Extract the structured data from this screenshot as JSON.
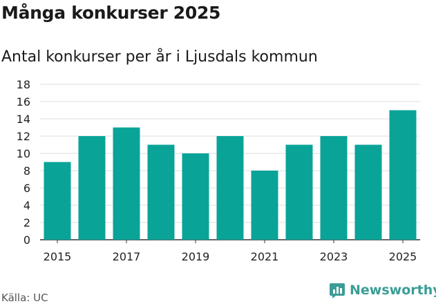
{
  "header": {
    "title": "Många konkurser 2025",
    "subtitle": "Antal konkurser per år i Ljusdals kommun"
  },
  "footer": {
    "source": "Källa: UC",
    "brand": "Newsworthy",
    "brand_icon": "bar-chart-logo-icon"
  },
  "colors": {
    "bar": "#0aa398",
    "grid": "#dddddd",
    "brand": "#3a9d96"
  },
  "chart_data": {
    "type": "bar",
    "categories": [
      "2015",
      "2016",
      "2017",
      "2018",
      "2019",
      "2020",
      "2021",
      "2022",
      "2023",
      "2024",
      "2025"
    ],
    "values": [
      9,
      12,
      13,
      11,
      10,
      12,
      8,
      11,
      12,
      11,
      15
    ],
    "x_tick_labels": [
      "2015",
      "2017",
      "2019",
      "2021",
      "2023",
      "2025"
    ],
    "y_ticks": [
      0,
      2,
      4,
      6,
      8,
      10,
      12,
      14,
      16,
      18
    ],
    "ylim": [
      0,
      18
    ],
    "grid": true
  }
}
